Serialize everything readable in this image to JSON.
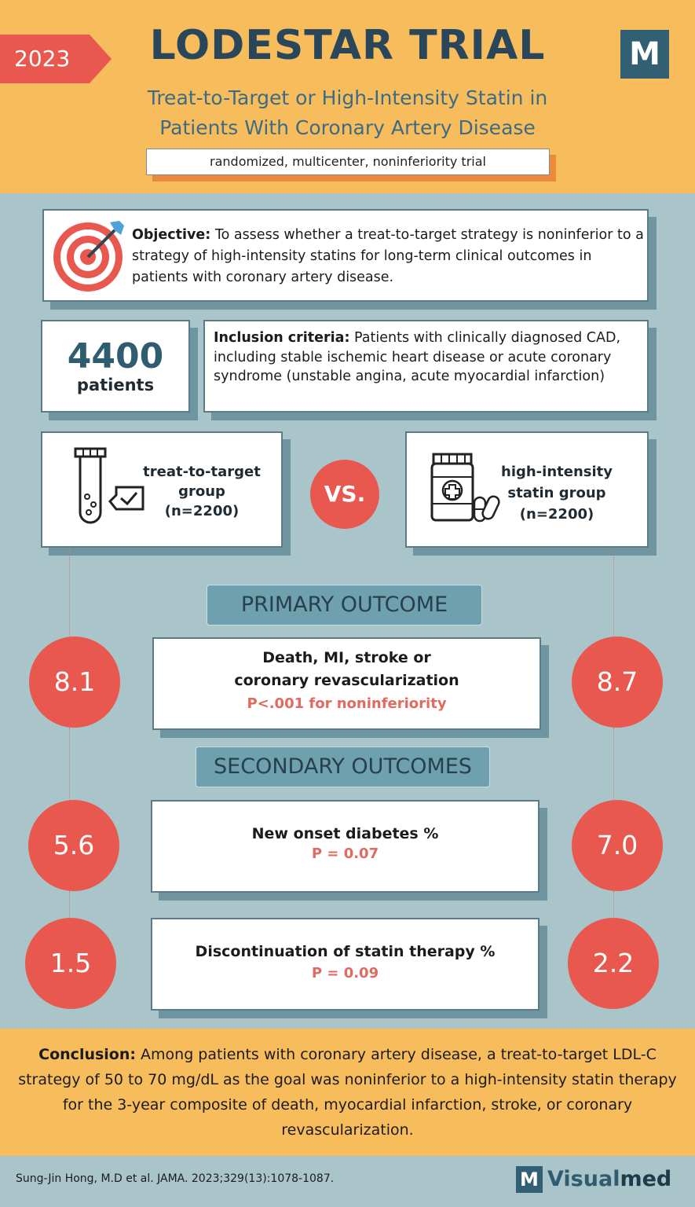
{
  "header": {
    "year": "2023",
    "title": "LODESTAR TRIAL",
    "logo_letter": "M",
    "subtitle_line1": "Treat-to-Target or High-Intensity Statin in",
    "subtitle_line2": "Patients With Coronary Artery Disease",
    "design": "randomized, multicenter, noninferiority trial"
  },
  "objective": {
    "label": "Objective:",
    "text": " To assess whether a treat-to-target strategy is noninferior to a strategy of high-intensity statins for long-term clinical outcomes in patients with coronary artery disease."
  },
  "patients": {
    "count": "4400",
    "label": "patients"
  },
  "inclusion": {
    "label": "Inclusion criteria:",
    "text": " Patients with clinically diagnosed CAD, including stable ischemic heart disease or acute coronary syndrome (unstable angina, acute myocardial infarction)"
  },
  "groups": {
    "left_line1": "treat-to-target",
    "left_line2": "group",
    "left_line3": "(n=2200)",
    "vs": "VS.",
    "right_line1": "high-intensity",
    "right_line2": "statin group",
    "right_line3": "(n=2200)"
  },
  "primary": {
    "heading": "PRIMARY OUTCOME",
    "title_line1": "Death, MI, stroke or",
    "title_line2": "coronary revascularization",
    "p": "P<.001 for noninferiority",
    "left_value": "8.1",
    "right_value": "8.7"
  },
  "secondary": {
    "heading": "SECONDARY OUTCOMES",
    "items": [
      {
        "title": "New onset diabetes %",
        "p": "P = 0.07",
        "left_value": "5.6",
        "right_value": "7.0"
      },
      {
        "title": "Discontinuation of statin therapy %",
        "p": "P = 0.09",
        "left_value": "1.5",
        "right_value": "2.2"
      }
    ]
  },
  "conclusion": {
    "label": "Conclusion:",
    "text": " Among patients with coronary artery disease, a treat-to-target LDL-C strategy of 50 to 70 mg/dL as the goal was noninferior to a high-intensity statin therapy for the 3-year composite of death, myocardial infarction, stroke, or coronary revascularization."
  },
  "footer": {
    "citation": "Sung-Jin Hong, M.D et al.  JAMA. 2023;329(13):1078-1087.",
    "brand_letter": "M",
    "brand_part1": "Visual",
    "brand_part2": "med"
  },
  "colors": {
    "header_bg": "#f7bd5c",
    "body_bg": "#a9c5c9",
    "accent_red": "#e8584f",
    "navy": "#29465a",
    "section_teal": "#6fa0ae"
  }
}
